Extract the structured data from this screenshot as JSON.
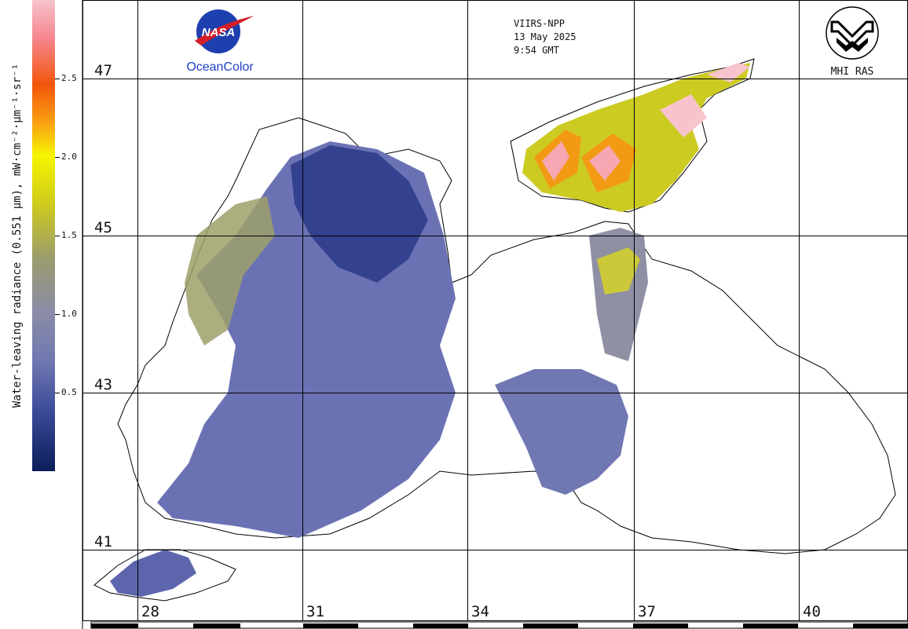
{
  "header": {
    "sensor": "VIIRS-NPP",
    "date": "13 May 2025",
    "time": "9:54 GMT"
  },
  "logos": {
    "nasa_text": "NASA",
    "oceancolor_text": "OceanColor",
    "mhi_text": "MHI RAS"
  },
  "colorbar": {
    "title": "Water-leaving radiance (0.551 µm), mW·cm⁻²·µm⁻¹·sr⁻¹",
    "ticks": [
      "2.5",
      "2.0",
      "1.5",
      "1.0",
      "0.5"
    ],
    "colors": [
      "#f7c3cd",
      "#f2560b",
      "#f7f401",
      "#9a9b6e",
      "#6f77b1",
      "#0b1d5a"
    ]
  },
  "grid": {
    "latitudes": [
      "47",
      "45",
      "43",
      "41"
    ],
    "longitudes": [
      "28",
      "31",
      "34",
      "37",
      "40"
    ]
  }
}
